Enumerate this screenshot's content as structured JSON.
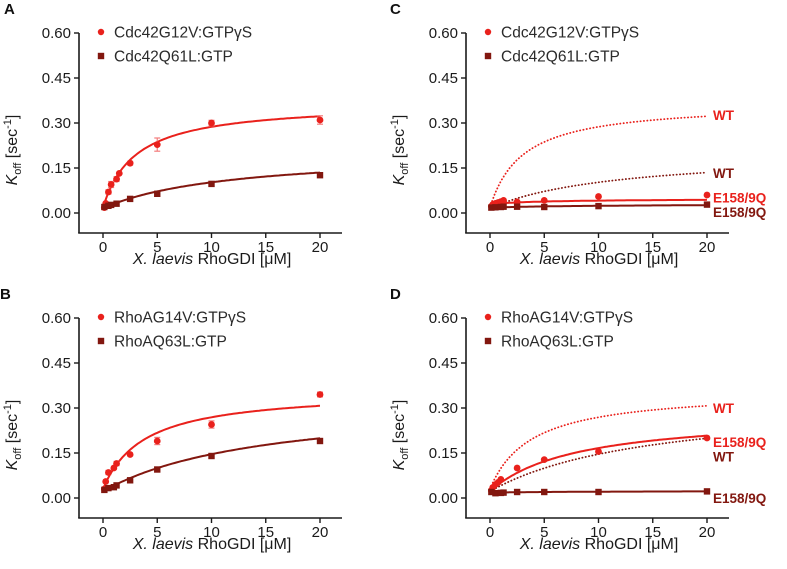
{
  "figure": {
    "background": "#ffffff"
  },
  "colors": {
    "red": "#e9211c",
    "dark_red": "#82170f",
    "error_bar": "#f47c7c",
    "axis": "#1a1a1a",
    "text": "#2b2b2b"
  },
  "axes": {
    "xlabel_italic": "X. laevis",
    "xlabel_normal": " RhoGDI [μM]",
    "ylabel": {
      "k": "K",
      "sub": "off",
      "mid": " [sec",
      "sup": "-1",
      "end": "]"
    },
    "xticks": [
      0,
      5,
      10,
      15,
      20
    ],
    "xtick_labels": [
      "0",
      "5",
      "10",
      "15",
      "20"
    ],
    "yticks": [
      0.0,
      0.15,
      0.3,
      0.45,
      0.6
    ],
    "ytick_labels": [
      "0.00",
      "0.15",
      "0.30",
      "0.45",
      "0.60"
    ],
    "xlim": [
      0,
      20
    ],
    "ylim": [
      0,
      0.6
    ]
  },
  "chart_data": [
    {
      "panel": "A",
      "type": "scatter",
      "xlabel": "X. laevis RhoGDI [μM]",
      "ylabel": "Koff [sec-1]",
      "xlim": [
        0,
        20
      ],
      "ylim": [
        0,
        0.6
      ],
      "legend": [
        {
          "label": "Cdc42G12V:GTPγS",
          "marker": "circle",
          "color": "red"
        },
        {
          "label": "Cdc42Q61L:GTP",
          "marker": "square",
          "color": "dark_red"
        }
      ],
      "series": [
        {
          "name": "Cdc42G12V:GTPgS",
          "color": "red",
          "marker": "circle",
          "line": "solid",
          "fit": {
            "y0": 0.018,
            "vmax": 0.35,
            "km": 3.0
          },
          "points": [
            [
              0.125,
              0.018,
              0
            ],
            [
              0.25,
              0.032,
              0
            ],
            [
              0.5,
              0.07,
              0.007
            ],
            [
              0.75,
              0.095,
              0.01
            ],
            [
              1.25,
              0.113,
              0.008
            ],
            [
              1.5,
              0.132,
              0
            ],
            [
              2.5,
              0.166,
              0.006
            ],
            [
              5,
              0.228,
              0.022
            ],
            [
              10,
              0.3,
              0.009
            ],
            [
              20,
              0.31,
              0.014
            ]
          ]
        },
        {
          "name": "Cdc42Q61L:GTP",
          "color": "dark_red",
          "marker": "square",
          "line": "solid",
          "fit": {
            "y0": 0.016,
            "vmax": 0.19,
            "km": 12
          },
          "points": [
            [
              0.125,
              0.02,
              0
            ],
            [
              0.5,
              0.024,
              0
            ],
            [
              0.75,
              0.027,
              0
            ],
            [
              1.25,
              0.031,
              0
            ],
            [
              2.5,
              0.047,
              0
            ],
            [
              5,
              0.064,
              0
            ],
            [
              10,
              0.097,
              0
            ],
            [
              20,
              0.126,
              0
            ]
          ]
        }
      ],
      "annotations": []
    },
    {
      "panel": "C",
      "type": "scatter",
      "xlabel": "X. laevis RhoGDI [μM]",
      "ylabel": "Koff [sec-1]",
      "xlim": [
        0,
        20
      ],
      "ylim": [
        0,
        0.6
      ],
      "legend": [
        {
          "label": "Cdc42G12V:GTPγS",
          "marker": "circle",
          "color": "red"
        },
        {
          "label": "Cdc42Q61L:GTP",
          "marker": "square",
          "color": "dark_red"
        }
      ],
      "series": [
        {
          "name": "Cdc42G12V:GTPgS WT fit",
          "color": "red",
          "marker": "none",
          "line": "dotted",
          "fit": {
            "y0": 0.018,
            "vmax": 0.35,
            "km": 3.0
          },
          "points": []
        },
        {
          "name": "Cdc42Q61L:GTP WT fit",
          "color": "dark_red",
          "marker": "none",
          "line": "dotted",
          "fit": {
            "y0": 0.016,
            "vmax": 0.19,
            "km": 12
          },
          "points": []
        },
        {
          "name": "Cdc42G12V:GTPgS E158/9Q",
          "color": "red",
          "marker": "circle",
          "line": "solid",
          "fit": {
            "y0": 0.03,
            "vmax": 0.018,
            "km": 6
          },
          "points": [
            [
              0.125,
              0.022,
              0
            ],
            [
              0.25,
              0.028,
              0
            ],
            [
              0.5,
              0.032,
              0
            ],
            [
              0.75,
              0.035,
              0
            ],
            [
              1,
              0.038,
              0
            ],
            [
              1.25,
              0.042,
              0
            ],
            [
              2.5,
              0.037,
              0
            ],
            [
              5,
              0.042,
              0
            ],
            [
              10,
              0.055,
              0
            ],
            [
              20,
              0.06,
              0
            ]
          ]
        },
        {
          "name": "Cdc42Q61L:GTP E158/9Q",
          "color": "dark_red",
          "marker": "square",
          "line": "solid",
          "fit": {
            "y0": 0.018,
            "vmax": 0.012,
            "km": 10
          },
          "points": [
            [
              0.125,
              0.018,
              0
            ],
            [
              0.5,
              0.019,
              0
            ],
            [
              1,
              0.02,
              0
            ],
            [
              1.25,
              0.021,
              0
            ],
            [
              2.5,
              0.021,
              0
            ],
            [
              5,
              0.02,
              0
            ],
            [
              10,
              0.023,
              0
            ],
            [
              20,
              0.028,
              0
            ]
          ]
        }
      ],
      "annotations": [
        {
          "text": "WT",
          "color": "red",
          "y": 0.327
        },
        {
          "text": "WT",
          "color": "dark_red",
          "y": 0.133
        },
        {
          "text": "E158/9Q",
          "color": "red",
          "y": 0.052
        },
        {
          "text": "E158/9Q",
          "color": "dark_red",
          "y": 0.004
        }
      ]
    },
    {
      "panel": "B",
      "type": "scatter",
      "xlabel": "X. laevis RhoGDI [μM]",
      "ylabel": "Koff [sec-1]",
      "xlim": [
        0,
        20
      ],
      "ylim": [
        0,
        0.6
      ],
      "legend": [
        {
          "label": "RhoAG14V:GTPγS",
          "marker": "circle",
          "color": "red"
        },
        {
          "label": "RhoAQ63L:GTP",
          "marker": "square",
          "color": "dark_red"
        }
      ],
      "series": [
        {
          "name": "RhoAG14V:GTPgS",
          "color": "red",
          "marker": "circle",
          "line": "solid",
          "fit": {
            "y0": 0.03,
            "vmax": 0.33,
            "km": 3.8
          },
          "points": [
            [
              0.125,
              0.03,
              0
            ],
            [
              0.25,
              0.055,
              0
            ],
            [
              0.5,
              0.085,
              0.007
            ],
            [
              1,
              0.1,
              0
            ],
            [
              1.25,
              0.115,
              0.007
            ],
            [
              2.5,
              0.145,
              0
            ],
            [
              5,
              0.19,
              0.012
            ],
            [
              10,
              0.245,
              0.012
            ],
            [
              20,
              0.345,
              0.008
            ]
          ]
        },
        {
          "name": "RhoAQ63L:GTP",
          "color": "dark_red",
          "marker": "square",
          "line": "solid",
          "fit": {
            "y0": 0.022,
            "vmax": 0.31,
            "km": 15
          },
          "points": [
            [
              0.125,
              0.027,
              0
            ],
            [
              0.5,
              0.033,
              0
            ],
            [
              1,
              0.036,
              0
            ],
            [
              1.25,
              0.042,
              0
            ],
            [
              2.5,
              0.059,
              0
            ],
            [
              5,
              0.095,
              0
            ],
            [
              10,
              0.14,
              0
            ],
            [
              20,
              0.19,
              0
            ]
          ]
        }
      ],
      "annotations": []
    },
    {
      "panel": "D",
      "type": "scatter",
      "xlabel": "X. laevis RhoGDI [μM]",
      "ylabel": "Koff [sec-1]",
      "xlim": [
        0,
        20
      ],
      "ylim": [
        0,
        0.6
      ],
      "legend": [
        {
          "label": "RhoAG14V:GTPγS",
          "marker": "circle",
          "color": "red"
        },
        {
          "label": "RhoAQ63L:GTP",
          "marker": "square",
          "color": "dark_red"
        }
      ],
      "series": [
        {
          "name": "RhoAG14V:GTPgS WT fit",
          "color": "red",
          "marker": "none",
          "line": "dotted",
          "fit": {
            "y0": 0.03,
            "vmax": 0.33,
            "km": 3.8
          },
          "points": []
        },
        {
          "name": "RhoAQ63L:GTP WT fit",
          "color": "dark_red",
          "marker": "none",
          "line": "dotted",
          "fit": {
            "y0": 0.022,
            "vmax": 0.31,
            "km": 15
          },
          "points": []
        },
        {
          "name": "RhoAG14V:GTPgS E158/9Q",
          "color": "red",
          "marker": "circle",
          "line": "solid",
          "fit": {
            "y0": 0.022,
            "vmax": 0.26,
            "km": 8
          },
          "points": [
            [
              0.125,
              0.025,
              0
            ],
            [
              0.25,
              0.035,
              0
            ],
            [
              0.5,
              0.045,
              0
            ],
            [
              0.75,
              0.052,
              0
            ],
            [
              1,
              0.062,
              0
            ],
            [
              2.5,
              0.1,
              0
            ],
            [
              5,
              0.128,
              0
            ],
            [
              10,
              0.155,
              0
            ],
            [
              20,
              0.2,
              0
            ]
          ]
        },
        {
          "name": "RhoAQ63L:GTP E158/9Q",
          "color": "dark_red",
          "marker": "square",
          "line": "solid",
          "fit": {
            "y0": 0.018,
            "vmax": 0.006,
            "km": 10
          },
          "points": [
            [
              0.125,
              0.02,
              0
            ],
            [
              0.5,
              0.016,
              0
            ],
            [
              1,
              0.017,
              0
            ],
            [
              1.25,
              0.018,
              0
            ],
            [
              2.5,
              0.02,
              0
            ],
            [
              5,
              0.02,
              0
            ],
            [
              10,
              0.02,
              0
            ],
            [
              20,
              0.022,
              0
            ]
          ]
        }
      ],
      "annotations": [
        {
          "text": "WT",
          "color": "red",
          "y": 0.3
        },
        {
          "text": "E158/9Q",
          "color": "red",
          "y": 0.186
        },
        {
          "text": "WT",
          "color": "dark_red",
          "y": 0.138
        },
        {
          "text": "E158/9Q",
          "color": "dark_red",
          "y": 0.0
        }
      ]
    }
  ]
}
